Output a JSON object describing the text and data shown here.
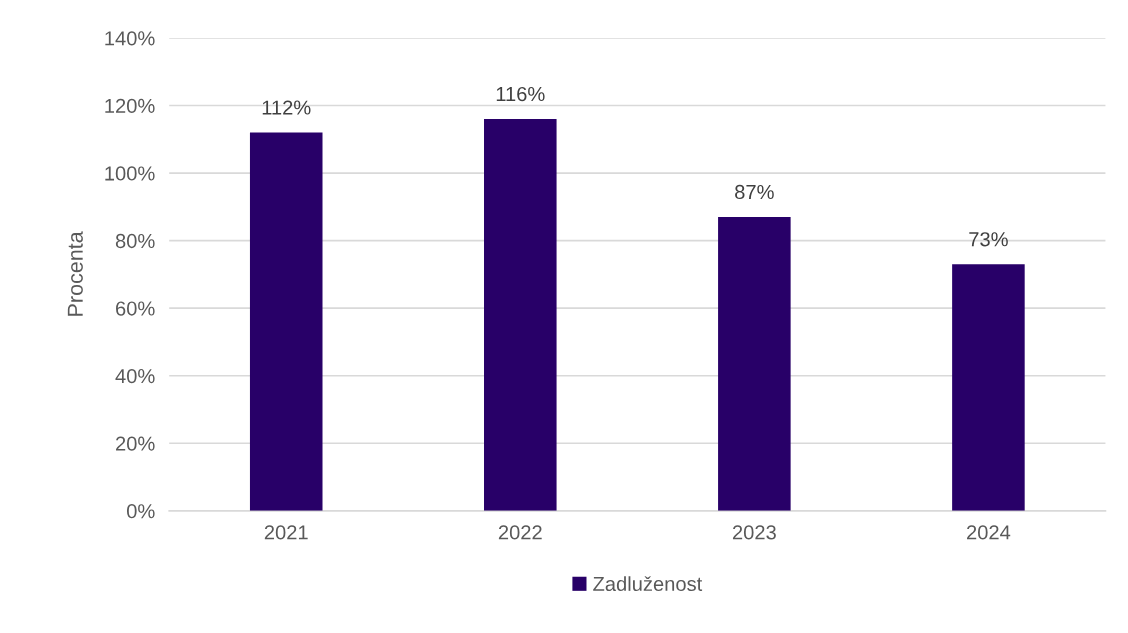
{
  "chart_data": {
    "type": "bar",
    "ylabel": "Procenta",
    "categories": [
      "2021",
      "2022",
      "2023",
      "2024"
    ],
    "series": [
      {
        "name": "Zadluženost",
        "color": "#280068",
        "values": [
          112,
          116,
          87,
          73
        ],
        "value_labels": [
          "112%",
          "116%",
          "87%",
          "73%"
        ]
      }
    ],
    "ylim": [
      0,
      140
    ],
    "yticks": [
      {
        "value": 0,
        "label": "0%"
      },
      {
        "value": 20,
        "label": "20%"
      },
      {
        "value": 40,
        "label": "40%"
      },
      {
        "value": 60,
        "label": "60%"
      },
      {
        "value": 80,
        "label": "80%"
      },
      {
        "value": 100,
        "label": "100%"
      },
      {
        "value": 120,
        "label": "120%"
      },
      {
        "value": 140,
        "label": "140%"
      }
    ],
    "grid": "y",
    "legend": "bottom"
  }
}
